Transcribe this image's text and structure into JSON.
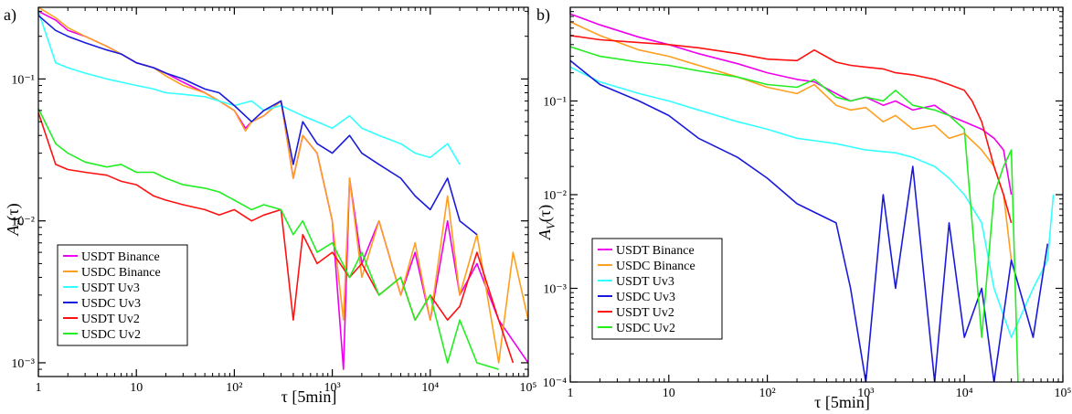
{
  "chart_data": [
    {
      "type": "line",
      "panel_label": "a)",
      "ylabel": "A_r(τ)",
      "ylabel_main": "A",
      "ylabel_sub": "r",
      "ylabel_suffix": "(τ)",
      "xlabel": "τ [5min]",
      "xscale": "log",
      "yscale": "log",
      "xlim": [
        1,
        100000
      ],
      "ylim": [
        0.0008,
        0.32
      ],
      "xtick_values": [
        1,
        10,
        100,
        1000,
        10000,
        100000
      ],
      "xtick_labels": [
        "1",
        "10",
        "10²",
        "10³",
        "10⁴",
        "10⁵"
      ],
      "ytick_values": [
        0.1,
        0.01,
        0.001
      ],
      "ytick_labels": [
        "10⁻¹",
        "10⁻²",
        "10⁻³"
      ],
      "legend_position": "lower-left",
      "series": [
        {
          "name": "USDT Binance",
          "color": "#ee00ee",
          "x": [
            1,
            1.5,
            2,
            3,
            5,
            7,
            10,
            15,
            20,
            30,
            50,
            70,
            100,
            130,
            150,
            200,
            300,
            400,
            500,
            700,
            1000,
            1300,
            1500,
            2000,
            3000,
            5000,
            7000,
            10000,
            15000,
            20000,
            30000,
            50000,
            100000
          ],
          "y": [
            0.3,
            0.26,
            0.22,
            0.2,
            0.17,
            0.15,
            0.13,
            0.12,
            0.11,
            0.095,
            0.08,
            0.07,
            0.06,
            0.045,
            0.05,
            0.055,
            0.07,
            0.02,
            0.04,
            0.03,
            0.01,
            0.0009,
            0.02,
            0.005,
            0.01,
            0.003,
            0.006,
            0.002,
            0.01,
            0.003,
            0.005,
            0.002,
            0.001
          ]
        },
        {
          "name": "USDC Binance",
          "color": "#ff9f1f",
          "x": [
            1,
            1.5,
            2,
            3,
            5,
            7,
            10,
            15,
            20,
            30,
            50,
            70,
            100,
            130,
            150,
            200,
            300,
            400,
            500,
            700,
            1000,
            1300,
            1500,
            2000,
            3000,
            5000,
            7000,
            10000,
            15000,
            20000,
            30000,
            50000,
            70000,
            100000
          ],
          "y": [
            0.32,
            0.27,
            0.23,
            0.2,
            0.17,
            0.15,
            0.13,
            0.12,
            0.105,
            0.09,
            0.08,
            0.07,
            0.06,
            0.043,
            0.05,
            0.055,
            0.07,
            0.02,
            0.04,
            0.03,
            0.01,
            0.002,
            0.02,
            0.004,
            0.01,
            0.003,
            0.007,
            0.002,
            0.015,
            0.003,
            0.008,
            0.001,
            0.006,
            0.002
          ]
        },
        {
          "name": "USDT Uv3",
          "color": "#33ffff",
          "x": [
            1,
            1.5,
            2,
            3,
            5,
            7,
            10,
            15,
            20,
            30,
            50,
            70,
            100,
            150,
            200,
            300,
            500,
            700,
            1000,
            1500,
            2000,
            3000,
            5000,
            7000,
            10000,
            15000,
            20000
          ],
          "y": [
            0.3,
            0.13,
            0.12,
            0.11,
            0.1,
            0.095,
            0.09,
            0.085,
            0.08,
            0.078,
            0.075,
            0.07,
            0.065,
            0.07,
            0.06,
            0.065,
            0.055,
            0.05,
            0.045,
            0.055,
            0.045,
            0.04,
            0.035,
            0.03,
            0.028,
            0.035,
            0.025
          ]
        },
        {
          "name": "USDC Uv3",
          "color": "#1a1adb",
          "x": [
            1,
            1.5,
            2,
            3,
            5,
            7,
            10,
            15,
            20,
            30,
            50,
            70,
            100,
            150,
            200,
            300,
            400,
            500,
            700,
            1000,
            1500,
            2000,
            3000,
            5000,
            7000,
            10000,
            15000,
            20000,
            30000
          ],
          "y": [
            0.28,
            0.22,
            0.2,
            0.18,
            0.16,
            0.15,
            0.13,
            0.12,
            0.11,
            0.1,
            0.085,
            0.08,
            0.065,
            0.05,
            0.06,
            0.07,
            0.025,
            0.05,
            0.035,
            0.03,
            0.04,
            0.03,
            0.025,
            0.02,
            0.015,
            0.012,
            0.02,
            0.01,
            0.008
          ]
        },
        {
          "name": "USDT Uv2",
          "color": "#ff1111",
          "x": [
            1,
            1.5,
            2,
            3,
            5,
            7,
            10,
            15,
            20,
            30,
            50,
            70,
            100,
            150,
            200,
            300,
            400,
            500,
            700,
            1000,
            1500,
            2000,
            3000,
            5000,
            7000,
            10000,
            15000,
            20000,
            30000,
            50000,
            70000
          ],
          "y": [
            0.058,
            0.025,
            0.023,
            0.022,
            0.021,
            0.019,
            0.018,
            0.015,
            0.014,
            0.013,
            0.012,
            0.011,
            0.012,
            0.01,
            0.011,
            0.012,
            0.002,
            0.008,
            0.005,
            0.006,
            0.004,
            0.005,
            0.003,
            0.004,
            0.002,
            0.003,
            0.002,
            0.0025,
            0.006,
            0.002,
            0.001
          ]
        },
        {
          "name": "USDC Uv2",
          "color": "#22ee22",
          "x": [
            1,
            1.5,
            2,
            3,
            5,
            7,
            10,
            15,
            20,
            30,
            50,
            70,
            100,
            150,
            200,
            300,
            400,
            500,
            700,
            1000,
            1500,
            2000,
            3000,
            5000,
            7000,
            10000,
            15000,
            20000,
            30000,
            50000
          ],
          "y": [
            0.062,
            0.035,
            0.03,
            0.026,
            0.024,
            0.025,
            0.022,
            0.022,
            0.02,
            0.018,
            0.017,
            0.016,
            0.014,
            0.012,
            0.013,
            0.012,
            0.008,
            0.01,
            0.006,
            0.007,
            0.004,
            0.006,
            0.003,
            0.004,
            0.002,
            0.003,
            0.001,
            0.002,
            0.001,
            0.0009
          ]
        }
      ]
    },
    {
      "type": "line",
      "panel_label": "b)",
      "ylabel": "A_V(τ)",
      "ylabel_main": "A",
      "ylabel_sub": "V",
      "ylabel_suffix": "(τ)",
      "xlabel": "τ [5min]",
      "xscale": "log",
      "yscale": "log",
      "xlim": [
        1,
        100000
      ],
      "ylim": [
        0.0001,
        1.0
      ],
      "xtick_values": [
        1,
        10,
        100,
        1000,
        10000,
        100000
      ],
      "xtick_labels": [
        "1",
        "10",
        "10²",
        "10³",
        "10⁴",
        "10⁵"
      ],
      "ytick_values": [
        0.1,
        0.01,
        0.001,
        0.0001
      ],
      "ytick_labels": [
        "10⁻¹",
        "10⁻²",
        "10⁻³",
        "10⁻⁴"
      ],
      "legend_position": "lower-left",
      "series": [
        {
          "name": "USDT Binance",
          "color": "#ee00ee",
          "x": [
            1,
            2,
            5,
            10,
            20,
            50,
            100,
            200,
            300,
            500,
            700,
            1000,
            1500,
            2000,
            3000,
            5000,
            7000,
            10000,
            15000,
            20000,
            25000,
            30000
          ],
          "y": [
            0.85,
            0.65,
            0.48,
            0.4,
            0.32,
            0.25,
            0.2,
            0.17,
            0.16,
            0.12,
            0.1,
            0.11,
            0.09,
            0.1,
            0.08,
            0.09,
            0.07,
            0.06,
            0.05,
            0.04,
            0.03,
            0.01
          ]
        },
        {
          "name": "USDC Binance",
          "color": "#ff9f1f",
          "x": [
            1,
            2,
            5,
            10,
            20,
            50,
            100,
            200,
            300,
            500,
            700,
            1000,
            1500,
            2000,
            3000,
            5000,
            7000,
            10000,
            15000,
            20000,
            25000,
            30000
          ],
          "y": [
            0.7,
            0.5,
            0.35,
            0.3,
            0.24,
            0.18,
            0.14,
            0.12,
            0.15,
            0.09,
            0.08,
            0.085,
            0.06,
            0.07,
            0.05,
            0.055,
            0.04,
            0.045,
            0.03,
            0.02,
            0.01,
            0.002
          ]
        },
        {
          "name": "USDT Uv3",
          "color": "#33ffff",
          "x": [
            1,
            2,
            5,
            10,
            20,
            50,
            100,
            200,
            500,
            1000,
            2000,
            3000,
            5000,
            7000,
            10000,
            15000,
            20000,
            30000,
            50000,
            70000,
            80000
          ],
          "y": [
            0.23,
            0.16,
            0.12,
            0.1,
            0.08,
            0.06,
            0.05,
            0.04,
            0.035,
            0.03,
            0.028,
            0.025,
            0.02,
            0.015,
            0.01,
            0.005,
            0.001,
            0.0003,
            0.001,
            0.002,
            0.01
          ]
        },
        {
          "name": "USDC Uv3",
          "color": "#1a1adb",
          "x": [
            1,
            2,
            5,
            10,
            20,
            50,
            100,
            200,
            500,
            700,
            1000,
            1500,
            2000,
            3000,
            5000,
            7000,
            10000,
            15000,
            20000,
            30000,
            50000,
            70000
          ],
          "y": [
            0.27,
            0.15,
            0.1,
            0.07,
            0.04,
            0.025,
            0.015,
            0.008,
            0.005,
            0.001,
            0.0001,
            0.01,
            0.001,
            0.02,
            0.0001,
            0.005,
            0.0003,
            0.001,
            0.0001,
            0.002,
            0.0003,
            0.003
          ]
        },
        {
          "name": "USDT Uv2",
          "color": "#ff1111",
          "x": [
            1,
            2,
            5,
            10,
            20,
            50,
            100,
            200,
            300,
            500,
            700,
            1000,
            1500,
            2000,
            3000,
            5000,
            7000,
            10000,
            12000,
            15000,
            20000,
            25000,
            30000
          ],
          "y": [
            0.5,
            0.45,
            0.42,
            0.4,
            0.37,
            0.32,
            0.28,
            0.27,
            0.35,
            0.26,
            0.24,
            0.23,
            0.22,
            0.2,
            0.19,
            0.17,
            0.15,
            0.13,
            0.1,
            0.06,
            0.02,
            0.01,
            0.005
          ]
        },
        {
          "name": "USDC Uv2",
          "color": "#22ee22",
          "x": [
            1,
            2,
            5,
            10,
            20,
            50,
            100,
            200,
            300,
            500,
            700,
            1000,
            1500,
            2000,
            3000,
            5000,
            7000,
            10000,
            15000,
            20000,
            25000,
            30000,
            35000
          ],
          "y": [
            0.38,
            0.3,
            0.26,
            0.24,
            0.21,
            0.18,
            0.15,
            0.14,
            0.17,
            0.11,
            0.1,
            0.11,
            0.1,
            0.13,
            0.09,
            0.08,
            0.07,
            0.05,
            0.0003,
            0.01,
            0.02,
            0.03,
            0.0001
          ]
        }
      ]
    }
  ]
}
